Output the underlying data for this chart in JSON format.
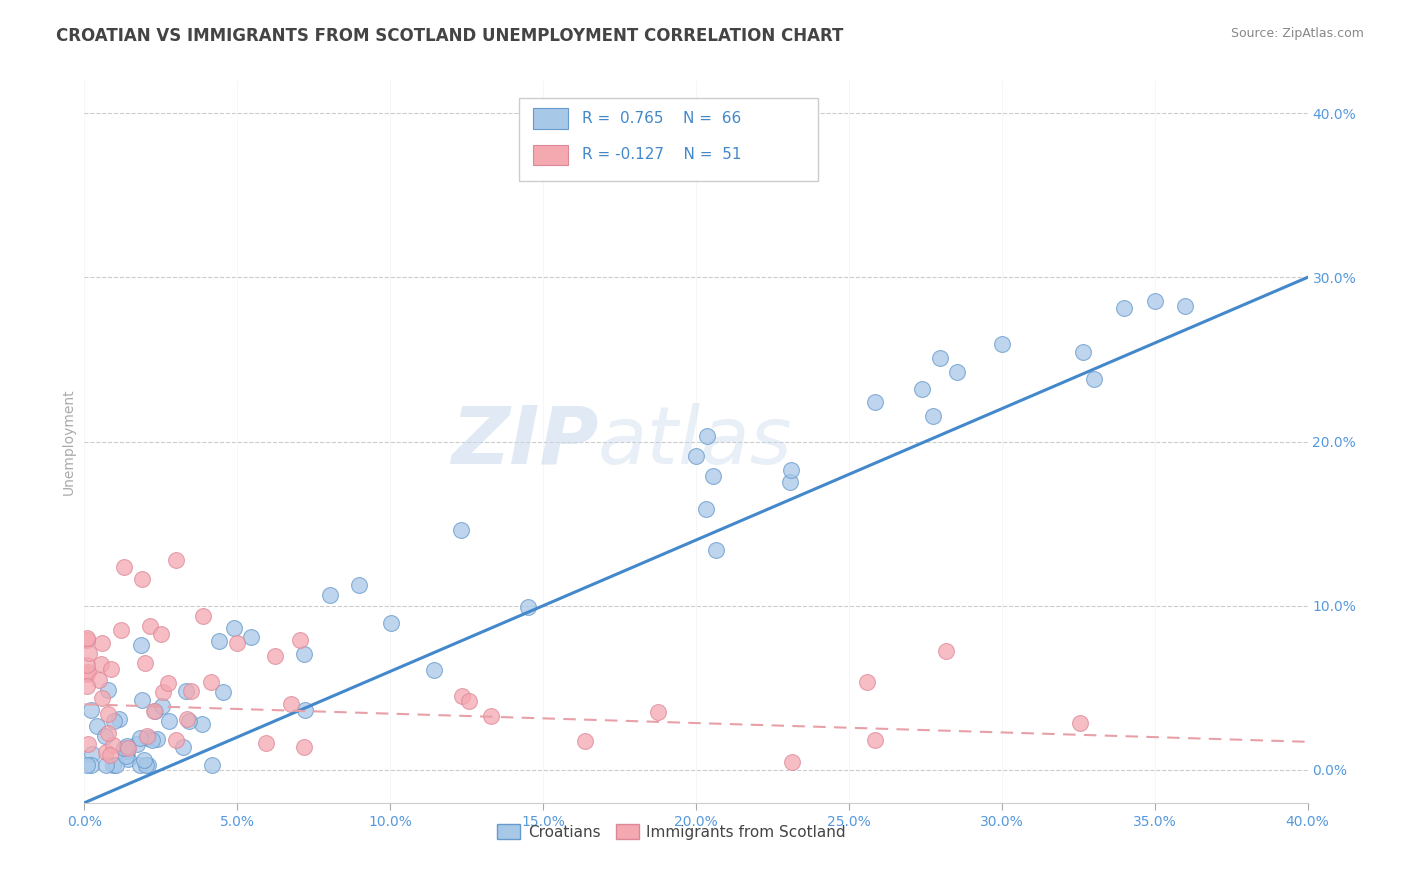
{
  "title": "CROATIAN VS IMMIGRANTS FROM SCOTLAND UNEMPLOYMENT CORRELATION CHART",
  "source": "Source: ZipAtlas.com",
  "ylabel": "Unemployment",
  "xlim": [
    0.0,
    0.4
  ],
  "ylim": [
    -0.02,
    0.42
  ],
  "xticks": [
    0.0,
    0.05,
    0.1,
    0.15,
    0.2,
    0.25,
    0.3,
    0.35,
    0.4
  ],
  "yticks_right": [
    0.0,
    0.1,
    0.2,
    0.3,
    0.4
  ],
  "blue_R": 0.765,
  "blue_N": 66,
  "pink_R": -0.127,
  "pink_N": 51,
  "blue_color": "#a8c8e8",
  "pink_color": "#f4a8b0",
  "blue_line_color": "#4488cc",
  "pink_line_color": "#e8a0a8",
  "blue_edge_color": "#6699cc",
  "pink_edge_color": "#dd8899",
  "watermark": "ZIPatlas",
  "background_color": "#ffffff",
  "grid_color": "#cccccc",
  "title_color": "#444444",
  "axis_label_color": "#5599dd",
  "legend_R_color": "#4488cc"
}
